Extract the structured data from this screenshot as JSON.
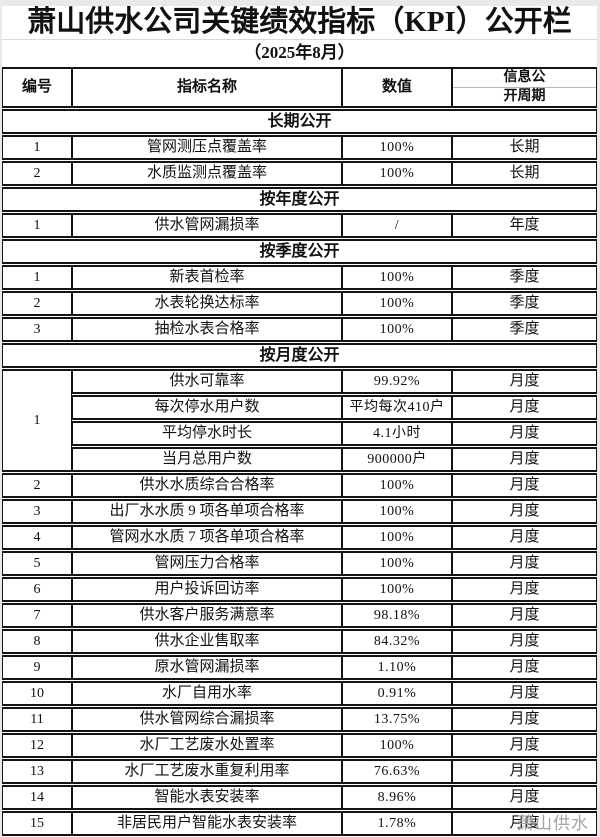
{
  "page": {
    "title": "萧山供水公司关键绩效指标（KPI）公开栏",
    "subtitle": "（2025年8月）",
    "watermark": "萧山供水"
  },
  "colors": {
    "page_background": "#e9e9e9",
    "sheet_background": "#ffffff",
    "table_border": "#141414",
    "watermark_text": "#a3a3a3"
  },
  "table": {
    "columns": [
      "编号",
      "指标名称",
      "数值",
      "信息公开周期"
    ],
    "period_header": {
      "line1": "信息公",
      "line2": "开周期"
    },
    "sections": [
      {
        "title": "长期公开",
        "rows": [
          {
            "no": "1",
            "name": "管网测压点覆盖率",
            "value": "100%",
            "period": "长期"
          },
          {
            "no": "2",
            "name": "水质监测点覆盖率",
            "value": "100%",
            "period": "长期"
          }
        ]
      },
      {
        "title": "按年度公开",
        "rows": [
          {
            "no": "1",
            "name": "供水管网漏损率",
            "value": "/",
            "period": "年度"
          }
        ]
      },
      {
        "title": "按季度公开",
        "rows": [
          {
            "no": "1",
            "name": "新表首检率",
            "value": "100%",
            "period": "季度"
          },
          {
            "no": "2",
            "name": "水表轮换达标率",
            "value": "100%",
            "period": "季度"
          },
          {
            "no": "3",
            "name": "抽检水表合格率",
            "value": "100%",
            "period": "季度"
          }
        ]
      },
      {
        "title": "按月度公开",
        "rows": [
          {
            "no": "1",
            "no_rowspan": 4,
            "name": "供水可靠率",
            "value": "99.92%",
            "period": "月度"
          },
          {
            "no": null,
            "name": "每次停水用户数",
            "value": "平均每次410户",
            "period": "月度"
          },
          {
            "no": null,
            "name": "平均停水时长",
            "value": "4.1小时",
            "period": "月度"
          },
          {
            "no": null,
            "name": "当月总用户数",
            "value": "900000户",
            "period": "月度"
          },
          {
            "no": "2",
            "name": "供水水质综合合格率",
            "value": "100%",
            "period": "月度"
          },
          {
            "no": "3",
            "name": "出厂水水质 9 项各单项合格率",
            "value": "100%",
            "period": "月度"
          },
          {
            "no": "4",
            "name": "管网水水质 7 项各单项合格率",
            "value": "100%",
            "period": "月度"
          },
          {
            "no": "5",
            "name": "管网压力合格率",
            "value": "100%",
            "period": "月度"
          },
          {
            "no": "6",
            "name": "用户投诉回访率",
            "value": "100%",
            "period": "月度"
          },
          {
            "no": "7",
            "name": "供水客户服务满意率",
            "value": "98.18%",
            "period": "月度"
          },
          {
            "no": "8",
            "name": "供水企业售取率",
            "value": "84.32%",
            "period": "月度"
          },
          {
            "no": "9",
            "name": "原水管网漏损率",
            "value": "1.10%",
            "period": "月度"
          },
          {
            "no": "10",
            "name": "水厂自用水率",
            "value": "0.91%",
            "period": "月度"
          },
          {
            "no": "11",
            "name": "供水管网综合漏损率",
            "value": "13.75%",
            "period": "月度"
          },
          {
            "no": "12",
            "name": "水厂工艺废水处置率",
            "value": "100%",
            "period": "月度"
          },
          {
            "no": "13",
            "name": "水厂工艺废水重复利用率",
            "value": "76.63%",
            "period": "月度"
          },
          {
            "no": "14",
            "name": "智能水表安装率",
            "value": "8.96%",
            "period": "月度"
          },
          {
            "no": "15",
            "name": "非居民用户智能水表安装率",
            "value": "1.78%",
            "period": "月度"
          }
        ]
      }
    ]
  }
}
